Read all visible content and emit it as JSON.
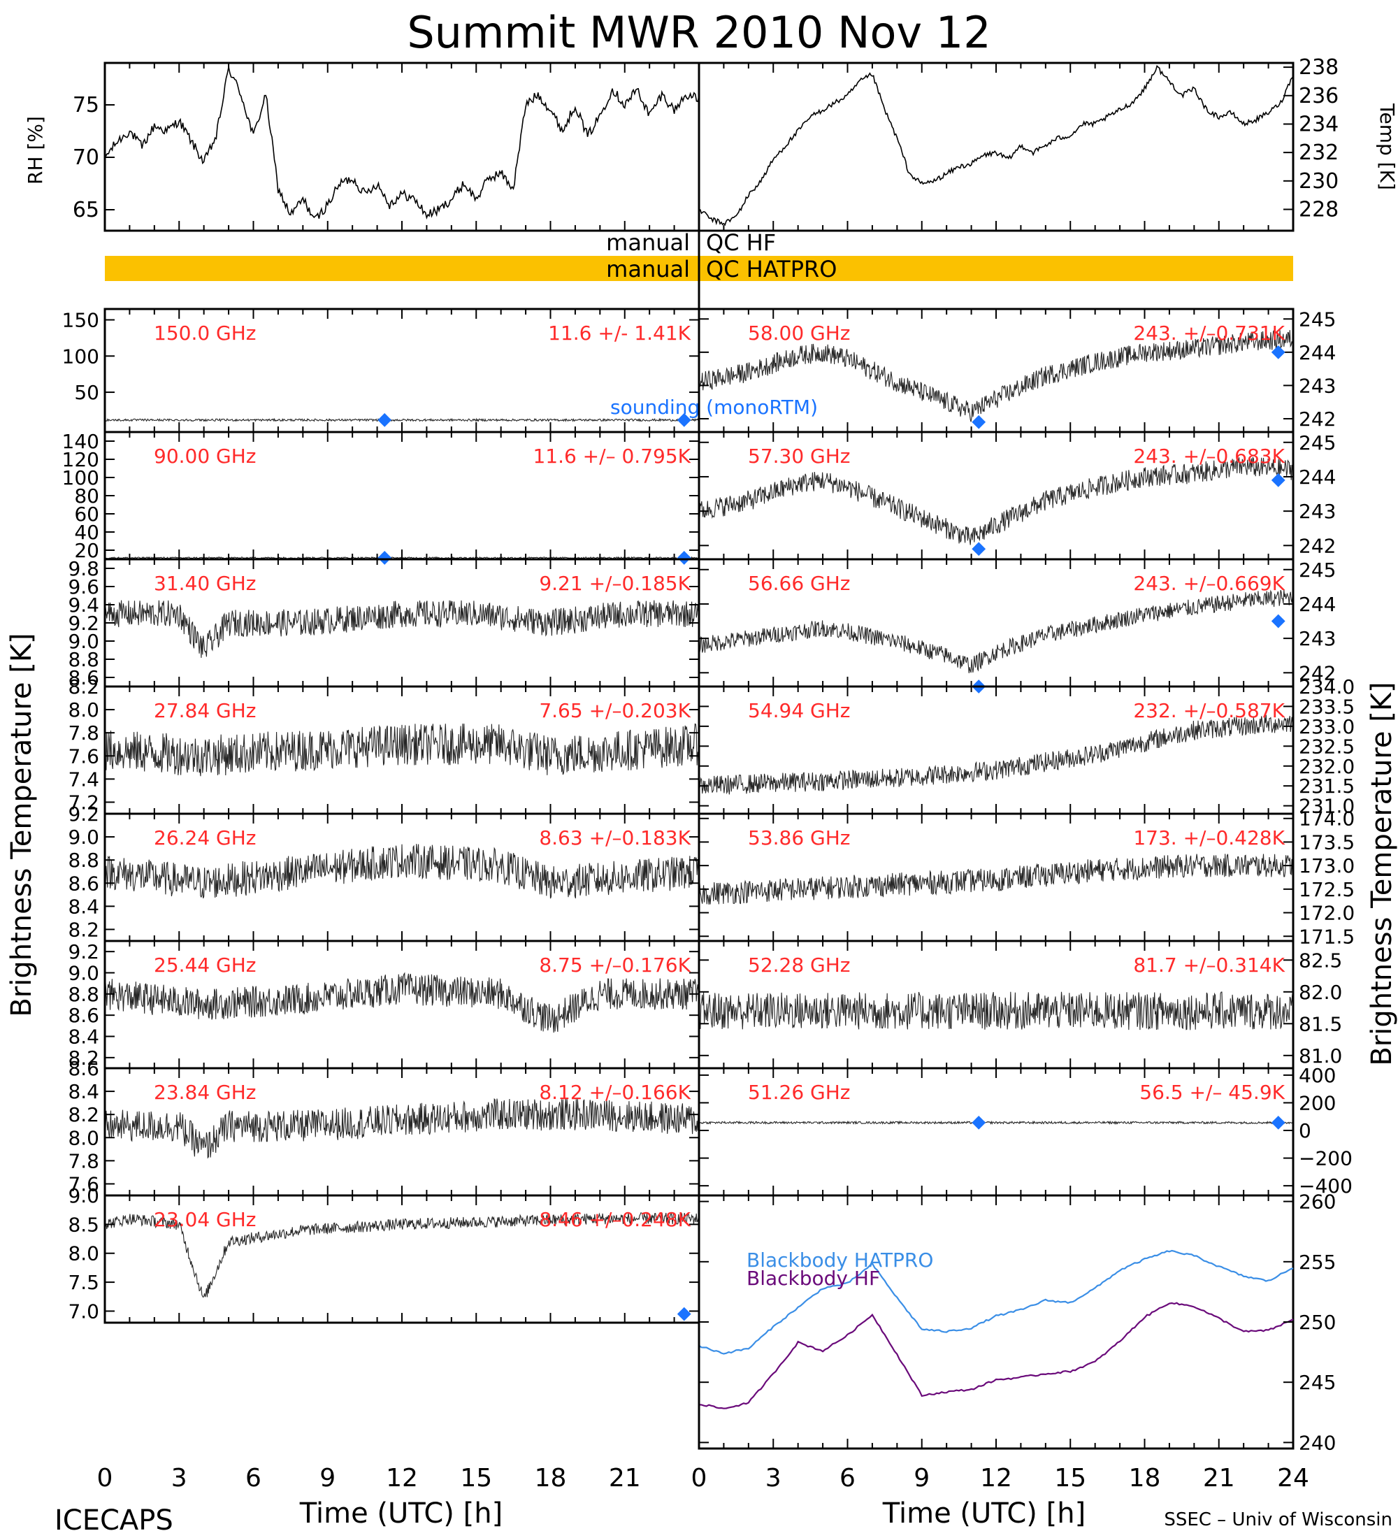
{
  "title": "Summit MWR 2010 Nov 12",
  "footer_left": "ICECAPS",
  "footer_right": "SSEC – Univ of Wisconsin",
  "colors": {
    "accent": "#ff2a2a",
    "sounding": "#1a73ff",
    "qc_bar": "#fbc100",
    "line": "#000000",
    "bb_hatpro": "#3a8ee6",
    "bb_hf": "#6a0a7a"
  },
  "qc": {
    "hf_left": "manual",
    "hf_right": "QC HF",
    "hatpro_left": "manual",
    "hatpro_right": "QC HATPRO"
  },
  "chart_data": [
    {
      "type": "line",
      "panel": "rh",
      "ylabel": "RH [%]",
      "ylim": [
        63,
        79
      ],
      "yticks": [
        "65",
        "70",
        "75"
      ],
      "x": [
        0,
        0.5,
        1,
        1.5,
        2,
        2.5,
        3,
        3.5,
        4,
        4.5,
        5,
        5.5,
        6,
        6.5,
        7,
        7.5,
        8,
        8.5,
        9,
        9.5,
        10,
        10.5,
        11,
        11.5,
        12,
        12.5,
        13,
        13.5,
        14,
        14.5,
        15,
        15.5,
        16,
        16.5,
        17,
        17.5,
        18,
        18.5,
        19,
        19.5,
        20,
        20.5,
        21,
        21.5,
        22,
        22.5,
        23,
        23.5,
        24
      ],
      "values": [
        70,
        71.5,
        72.5,
        71,
        73,
        72.5,
        73.5,
        71.5,
        69.5,
        72,
        78.5,
        76,
        72,
        76,
        67,
        64.5,
        66,
        64,
        65.5,
        67.5,
        68,
        66.5,
        67.5,
        65.5,
        66.5,
        66,
        64.5,
        65,
        66,
        67.5,
        66,
        68,
        68.5,
        67,
        75,
        76,
        74.5,
        72.5,
        75,
        72,
        74,
        76.5,
        75,
        76.5,
        74,
        76,
        74.5,
        76,
        75.5
      ]
    },
    {
      "type": "line",
      "panel": "temp",
      "ylabel": "Temp [K]",
      "ylim": [
        226.5,
        238.3
      ],
      "yticks": [
        "228",
        "230",
        "232",
        "234",
        "236",
        "238"
      ],
      "x": [
        0,
        0.5,
        1,
        1.5,
        2,
        2.5,
        3,
        3.5,
        4,
        4.5,
        5,
        5.5,
        6,
        6.5,
        7,
        7.5,
        8,
        8.5,
        9,
        9.5,
        10,
        10.5,
        11,
        11.5,
        12,
        12.5,
        13,
        13.5,
        14,
        14.5,
        15,
        15.5,
        16,
        16.5,
        17,
        17.5,
        18,
        18.5,
        19,
        19.5,
        20,
        20.5,
        21,
        21.5,
        22,
        22.5,
        23,
        23.5,
        24
      ],
      "values": [
        228,
        227.3,
        227,
        227.5,
        229,
        230,
        231.5,
        232.5,
        233.5,
        234.5,
        235,
        235.5,
        236,
        237,
        237.5,
        235,
        233,
        230.5,
        229.8,
        230,
        230.5,
        231,
        231.2,
        231.8,
        232,
        231.5,
        232.5,
        232,
        232.5,
        233,
        233.2,
        234,
        234,
        234.5,
        235,
        235.5,
        236.5,
        238,
        237,
        236,
        236.5,
        235,
        234.5,
        234.8,
        234,
        234.3,
        234.8,
        235.5,
        237.5
      ]
    },
    {
      "type": "line",
      "panel": "150.0",
      "label": "150.0 GHz",
      "stat": "11.6 +/-  1.41K",
      "ylim": [
        -5,
        165
      ],
      "yticks": [
        "50",
        "100",
        "150"
      ],
      "base": 11.6,
      "noise": 1.5,
      "sounding": [
        [
          11.3,
          11.6
        ],
        [
          23.4,
          11.6
        ]
      ],
      "annotation": "sounding (monoRTM)"
    },
    {
      "type": "line",
      "panel": "58.00",
      "label": "58.00 GHz",
      "stat": "243. +/–0.731K",
      "ylim": [
        241.6,
        245.3
      ],
      "yticks": [
        "242",
        "243",
        "244",
        "245"
      ],
      "x": [
        0,
        2,
        4,
        5,
        6,
        8,
        10,
        11,
        12,
        14,
        16,
        18,
        20,
        22,
        24
      ],
      "values": [
        243.1,
        243.4,
        243.9,
        244.0,
        243.8,
        243.1,
        242.5,
        242.2,
        242.6,
        243.3,
        243.7,
        244.0,
        244.1,
        244.3,
        244.4
      ],
      "noise": 0.3,
      "sounding": [
        [
          11.3,
          241.9
        ],
        [
          23.4,
          244.0
        ]
      ]
    },
    {
      "type": "line",
      "panel": "90.00",
      "label": "90.00 GHz",
      "stat": "11.6 +/– 0.795K",
      "ylim": [
        10,
        150
      ],
      "yticks": [
        "20",
        "40",
        "60",
        "80",
        "100",
        "120",
        "140"
      ],
      "base": 11.6,
      "noise": 0.8,
      "sounding": [
        [
          11.3,
          11.6
        ],
        [
          23.4,
          11.6
        ]
      ]
    },
    {
      "type": "line",
      "panel": "57.30",
      "label": "57.30 GHz",
      "stat": "243. +/–0.683K",
      "ylim": [
        241.6,
        245.3
      ],
      "yticks": [
        "242",
        "243",
        "244",
        "245"
      ],
      "x": [
        0,
        2,
        4,
        5,
        6,
        8,
        10,
        11,
        12,
        14,
        16,
        18,
        20,
        22,
        24
      ],
      "values": [
        243.0,
        243.3,
        243.8,
        243.9,
        243.7,
        243.1,
        242.5,
        242.2,
        242.6,
        243.3,
        243.7,
        244.0,
        244.1,
        244.3,
        244.2
      ],
      "noise": 0.3,
      "sounding": [
        [
          11.3,
          241.9
        ],
        [
          23.4,
          243.9
        ]
      ]
    },
    {
      "type": "line",
      "panel": "31.40",
      "label": "31.40 GHz",
      "stat": "9.21 +/–0.185K",
      "ylim": [
        8.5,
        9.9
      ],
      "yticks": [
        "8.6",
        "8.8",
        "9.0",
        "9.2",
        "9.4",
        "9.6",
        "9.8"
      ],
      "x": [
        0,
        3,
        4,
        5,
        8,
        12,
        15,
        18,
        21,
        24
      ],
      "values": [
        9.3,
        9.3,
        8.9,
        9.2,
        9.2,
        9.3,
        9.3,
        9.2,
        9.3,
        9.3
      ],
      "noise": 0.15
    },
    {
      "type": "line",
      "panel": "56.66",
      "label": "56.66 GHz",
      "stat": "243. +/–0.669K",
      "ylim": [
        241.6,
        245.3
      ],
      "yticks": [
        "242",
        "243",
        "244",
        "245"
      ],
      "x": [
        0,
        2,
        4,
        5,
        6,
        8,
        10,
        11,
        12,
        14,
        16,
        18,
        20,
        22,
        24
      ],
      "values": [
        242.8,
        243.0,
        243.2,
        243.3,
        243.2,
        242.9,
        242.5,
        242.2,
        242.6,
        243.1,
        243.4,
        243.7,
        243.9,
        244.1,
        244.2
      ],
      "noise": 0.25,
      "sounding": [
        [
          11.3,
          241.6
        ],
        [
          23.4,
          243.5
        ]
      ]
    },
    {
      "type": "line",
      "panel": "27.84",
      "label": "27.84 GHz",
      "stat": "7.65 +/–0.203K",
      "ylim": [
        7.1,
        8.2
      ],
      "yticks": [
        "7.2",
        "7.4",
        "7.6",
        "7.8",
        "8.0",
        "8.2"
      ],
      "x": [
        0,
        4,
        8,
        12,
        16,
        18,
        24
      ],
      "values": [
        7.65,
        7.6,
        7.65,
        7.7,
        7.7,
        7.6,
        7.7
      ],
      "noise": 0.18
    },
    {
      "type": "line",
      "panel": "54.94",
      "label": "54.94 GHz",
      "stat": "232. +/–0.587K",
      "ylim": [
        230.8,
        234.0
      ],
      "yticks": [
        "231.0",
        "231.5",
        "232.0",
        "232.5",
        "233.0",
        "233.5",
        "234.0"
      ],
      "x": [
        0,
        4,
        8,
        12,
        16,
        18,
        20,
        24
      ],
      "values": [
        231.5,
        231.6,
        231.7,
        231.9,
        232.3,
        232.6,
        232.9,
        233.1
      ],
      "noise": 0.25
    },
    {
      "type": "line",
      "panel": "26.24",
      "label": "26.24 GHz",
      "stat": "8.63 +/–0.183K",
      "ylim": [
        8.1,
        9.2
      ],
      "yticks": [
        "8.2",
        "8.4",
        "8.6",
        "8.8",
        "9.0",
        "9.2"
      ],
      "x": [
        0,
        4,
        8,
        12,
        16,
        18,
        24
      ],
      "values": [
        8.7,
        8.6,
        8.7,
        8.8,
        8.75,
        8.6,
        8.7
      ],
      "noise": 0.15
    },
    {
      "type": "line",
      "panel": "53.86",
      "label": "53.86 GHz",
      "stat": "173. +/–0.428K",
      "ylim": [
        171.4,
        174.1
      ],
      "yticks": [
        "171.5",
        "172.0",
        "172.5",
        "173.0",
        "173.5",
        "174.0"
      ],
      "x": [
        0,
        4,
        8,
        12,
        16,
        20,
        24
      ],
      "values": [
        172.4,
        172.5,
        172.6,
        172.7,
        172.9,
        173.0,
        173.0
      ],
      "noise": 0.25
    },
    {
      "type": "line",
      "panel": "25.44",
      "label": "25.44 GHz",
      "stat": "8.75 +/–0.176K",
      "ylim": [
        8.1,
        9.3
      ],
      "yticks": [
        "8.2",
        "8.4",
        "8.6",
        "8.8",
        "9.0",
        "9.2"
      ],
      "x": [
        0,
        4,
        8,
        12,
        16,
        18,
        20,
        24
      ],
      "values": [
        8.8,
        8.7,
        8.75,
        8.85,
        8.8,
        8.55,
        8.8,
        8.8
      ],
      "noise": 0.15
    },
    {
      "type": "line",
      "panel": "52.28",
      "label": "52.28 GHz",
      "stat": "81.7 +/–0.314K",
      "ylim": [
        80.8,
        82.8
      ],
      "yticks": [
        "81.0",
        "81.5",
        "82.0",
        "82.5"
      ],
      "x": [
        0,
        12,
        24
      ],
      "values": [
        81.7,
        81.7,
        81.7
      ],
      "noise": 0.3
    },
    {
      "type": "line",
      "panel": "23.84",
      "label": "23.84 GHz",
      "stat": "8.12 +/–0.166K",
      "ylim": [
        7.5,
        8.6
      ],
      "yticks": [
        "7.6",
        "7.8",
        "8.0",
        "8.2",
        "8.4",
        "8.6"
      ],
      "x": [
        0,
        3,
        4,
        5,
        8,
        12,
        16,
        20,
        24
      ],
      "values": [
        8.1,
        8.1,
        7.9,
        8.1,
        8.1,
        8.15,
        8.2,
        8.2,
        8.15
      ],
      "noise": 0.14
    },
    {
      "type": "line",
      "panel": "51.26",
      "label": "51.26 GHz",
      "stat": "56.5 +/– 45.9K",
      "ylim": [
        -470,
        450
      ],
      "yticks": [
        "−400",
        "−200",
        "0",
        "200",
        "400"
      ],
      "x": [
        0,
        24
      ],
      "values": [
        56.5,
        56.5
      ],
      "noise": 8,
      "sounding": [
        [
          11.3,
          56.5
        ],
        [
          23.4,
          56.5
        ]
      ]
    },
    {
      "type": "line",
      "panel": "23.04",
      "label": "23.04 GHz",
      "stat": "8.46 +/–0.248K",
      "ylim": [
        6.8,
        9.0
      ],
      "yticks": [
        "7.0",
        "7.5",
        "8.0",
        "8.5",
        "9.0"
      ],
      "x": [
        0,
        1,
        3,
        4,
        5,
        8,
        12,
        16,
        20,
        24
      ],
      "values": [
        8.5,
        8.6,
        8.5,
        7.2,
        8.2,
        8.4,
        8.5,
        8.55,
        8.6,
        8.6
      ],
      "noise": 0.1,
      "sounding": [
        [
          23.4,
          6.95
        ]
      ]
    },
    {
      "type": "line",
      "panel": "blackbody",
      "ylabel": "Temp [K]",
      "ylim": [
        239.5,
        260.5
      ],
      "yticks": [
        "240",
        "245",
        "250",
        "255",
        "260"
      ],
      "series": [
        {
          "name": "Blackbody HATPRO",
          "x": [
            0,
            1,
            2,
            3,
            4,
            5,
            6,
            7,
            8,
            9,
            10,
            11,
            12,
            13,
            14,
            15,
            16,
            17,
            18,
            19,
            20,
            21,
            22,
            23,
            24
          ],
          "values": [
            248,
            247.4,
            247.8,
            249.6,
            251.2,
            252.8,
            253.2,
            254.8,
            252,
            249.4,
            249.2,
            249.5,
            250.5,
            251,
            251.8,
            251.6,
            252.8,
            254.3,
            255.2,
            255.9,
            255.5,
            254.6,
            253.8,
            253.4,
            254.5
          ]
        },
        {
          "name": "Blackbody HF",
          "x": [
            0,
            1,
            2,
            3,
            4,
            5,
            6,
            7,
            8,
            9,
            10,
            11,
            12,
            13,
            14,
            15,
            16,
            17,
            18,
            19,
            20,
            21,
            22,
            23,
            24
          ],
          "values": [
            243.2,
            242.8,
            243.3,
            245.7,
            248.3,
            247.6,
            248.9,
            250.6,
            247.3,
            243.9,
            244.2,
            244.4,
            245.2,
            245.4,
            245.7,
            245.9,
            246.7,
            248.4,
            250.4,
            251.6,
            251.3,
            250.3,
            249.2,
            249.3,
            250.2
          ]
        }
      ]
    }
  ],
  "axes": {
    "x_ticks": [
      "0",
      "3",
      "6",
      "9",
      "12",
      "15",
      "18",
      "21",
      "24"
    ],
    "xlabel": "Time (UTC) [h]",
    "ylabel_tb": "Brightness Temperature [K]"
  }
}
